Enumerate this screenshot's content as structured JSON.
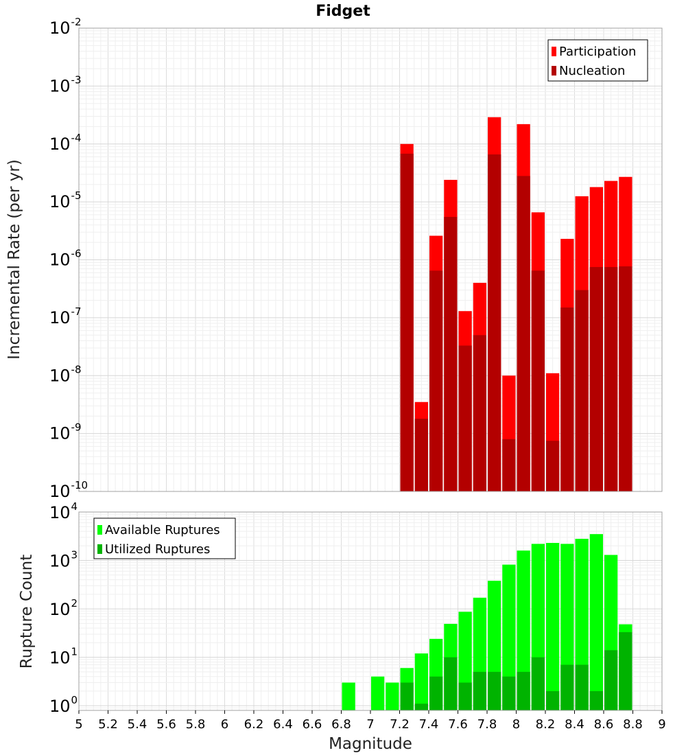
{
  "chart_data": [
    {
      "type": "bar",
      "title": "Fidget",
      "xlabel": "",
      "ylabel": "Incremental Rate (per yr)",
      "yscale": "log",
      "ylim": [
        1e-10,
        0.01
      ],
      "xlim": [
        5,
        9
      ],
      "bar_width": 0.1,
      "legend": "top-right",
      "grid": true,
      "series": [
        {
          "name": "Participation",
          "color": "#ff0000",
          "x": [
            7.25,
            7.35,
            7.45,
            7.55,
            7.65,
            7.75,
            7.85,
            7.95,
            8.05,
            8.15,
            8.25,
            8.35,
            8.45,
            8.55,
            8.65,
            8.75
          ],
          "values": [
            0.0001,
            3.5e-09,
            2.6e-06,
            2.4e-05,
            1.3e-07,
            4e-07,
            0.00029,
            1e-08,
            0.00022,
            6.6e-06,
            1.1e-08,
            2.3e-06,
            1.25e-05,
            1.8e-05,
            2.3e-05,
            2.7e-05
          ]
        },
        {
          "name": "Nucleation",
          "color": "#b30000",
          "x": [
            7.25,
            7.35,
            7.45,
            7.55,
            7.65,
            7.75,
            7.85,
            7.95,
            8.05,
            8.15,
            8.25,
            8.35,
            8.45,
            8.55,
            8.65,
            8.75
          ],
          "values": [
            6.8e-05,
            1.8e-09,
            6.5e-07,
            5.5e-06,
            3.3e-08,
            5e-08,
            6.6e-05,
            8e-10,
            2.8e-05,
            6.5e-07,
            7.5e-10,
            1.5e-07,
            3e-07,
            7.5e-07,
            7.5e-07,
            7.7e-07
          ]
        }
      ]
    },
    {
      "type": "bar",
      "title": "",
      "xlabel": "Magnitude",
      "ylabel": "Rupture Count",
      "yscale": "log",
      "ylim": [
        0.8,
        10000.0
      ],
      "xlim": [
        5,
        9
      ],
      "bar_width": 0.1,
      "legend": "top-left",
      "grid": true,
      "x_ticks": [
        "5",
        "5.2",
        "5.4",
        "5.6",
        "5.8",
        "6",
        "6.2",
        "6.4",
        "6.6",
        "6.8",
        "7",
        "7.2",
        "7.4",
        "7.6",
        "7.8",
        "8",
        "8.2",
        "8.4",
        "8.6",
        "8.8",
        "9"
      ],
      "series": [
        {
          "name": "Available Ruptures",
          "color": "#00ff00",
          "x": [
            6.85,
            7.05,
            7.15,
            7.25,
            7.35,
            7.45,
            7.55,
            7.65,
            7.75,
            7.85,
            7.95,
            8.05,
            8.15,
            8.25,
            8.35,
            8.45,
            8.55,
            8.65,
            8.75
          ],
          "values": [
            3,
            4,
            3,
            6,
            12,
            24,
            49,
            87,
            170,
            380,
            820,
            1600,
            2200,
            2300,
            2200,
            2800,
            3500,
            1300,
            48
          ]
        },
        {
          "name": "Utilized Ruptures",
          "color": "#00b300",
          "x": [
            7.25,
            7.35,
            7.45,
            7.55,
            7.65,
            7.75,
            7.85,
            7.95,
            8.05,
            8.15,
            8.25,
            8.35,
            8.45,
            8.55,
            8.65,
            8.75
          ],
          "values": [
            3,
            1.1,
            4,
            10,
            3,
            5,
            5,
            4,
            5,
            10,
            2,
            7,
            7,
            2,
            14,
            33
          ]
        }
      ]
    }
  ]
}
